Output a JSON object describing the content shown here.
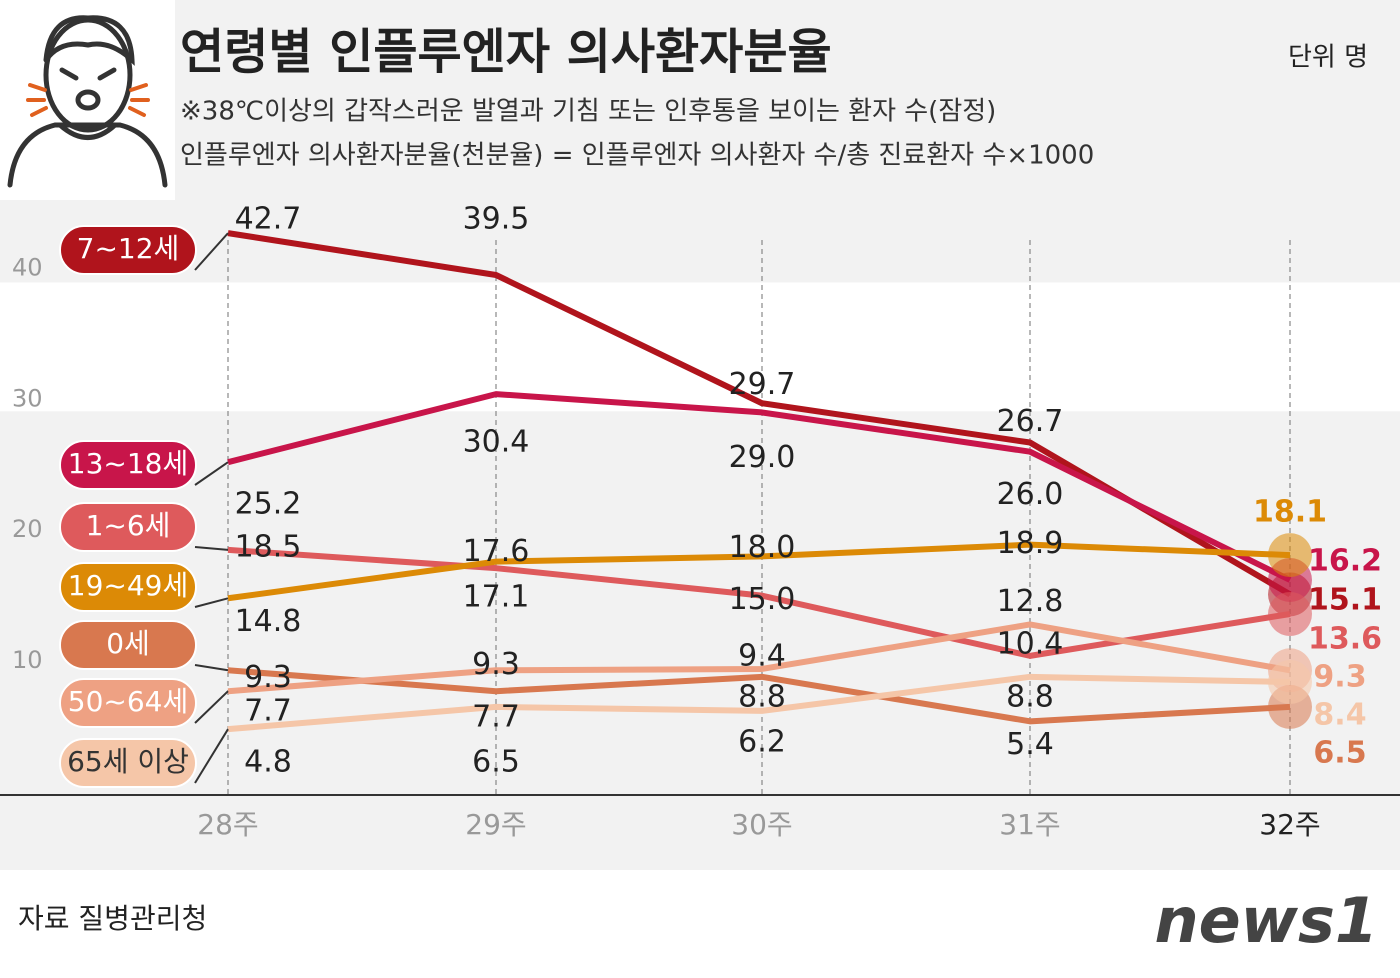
{
  "chart_data": {
    "type": "line",
    "title": "연령별 인플루엔자 의사환자분율",
    "subtitle": [
      "※38℃이상의 갑작스러운 발열과 기침 또는 인후통을 보이는 환자 수(잠정)",
      "인플루엔자 의사환자분율(천분율) = 인플루엔자 의사환자 수/총 진료환자 수×1000"
    ],
    "unit": "단위 명",
    "source": "자료 질병관리청",
    "logo": "news1",
    "categories": [
      "28주",
      "29주",
      "30주",
      "31주",
      "32주"
    ],
    "ylim": [
      0,
      45
    ],
    "yticks": [
      10,
      20,
      30,
      40
    ],
    "series": [
      {
        "name": "7~12세",
        "color": "#b0141c",
        "values": [
          42.7,
          39.5,
          29.7,
          26.7,
          15.1
        ],
        "value_labels": [
          "42.7",
          "39.5",
          "29.7",
          "26.7",
          "15.1"
        ]
      },
      {
        "name": "13~18세",
        "color": "#c8154a",
        "values": [
          25.2,
          30.4,
          29.0,
          26.0,
          16.2
        ],
        "value_labels": [
          "25.2",
          "30.4",
          "29.0",
          "26.0",
          "16.2"
        ]
      },
      {
        "name": "1~6세",
        "color": "#de5a5c",
        "values": [
          18.5,
          17.1,
          15.0,
          10.4,
          13.6
        ],
        "value_labels": [
          "18.5",
          "17.1",
          "15.0",
          "10.4",
          "13.6"
        ]
      },
      {
        "name": "19~49세",
        "color": "#dc8a06",
        "values": [
          14.8,
          17.6,
          18.0,
          18.9,
          18.1
        ],
        "value_labels": [
          "14.8",
          "17.6",
          "18.0",
          "18.9",
          "18.1"
        ]
      },
      {
        "name": "0세",
        "color": "#d8784f",
        "values": [
          9.3,
          7.7,
          8.8,
          5.4,
          6.5
        ],
        "value_labels": [
          "9.3",
          "7.7",
          "8.8",
          "5.4",
          "6.5"
        ]
      },
      {
        "name": "50~64세",
        "color": "#eea183",
        "values": [
          7.7,
          9.3,
          9.4,
          12.8,
          9.3
        ],
        "value_labels": [
          "7.7",
          "9.3",
          "9.4",
          "12.8",
          "9.3"
        ]
      },
      {
        "name": "65세 이상",
        "color": "#f5c6a8",
        "values": [
          4.8,
          6.5,
          6.2,
          8.8,
          8.4
        ],
        "value_labels": [
          "4.8",
          "6.5",
          "6.2",
          "8.8",
          "8.4"
        ]
      }
    ]
  }
}
